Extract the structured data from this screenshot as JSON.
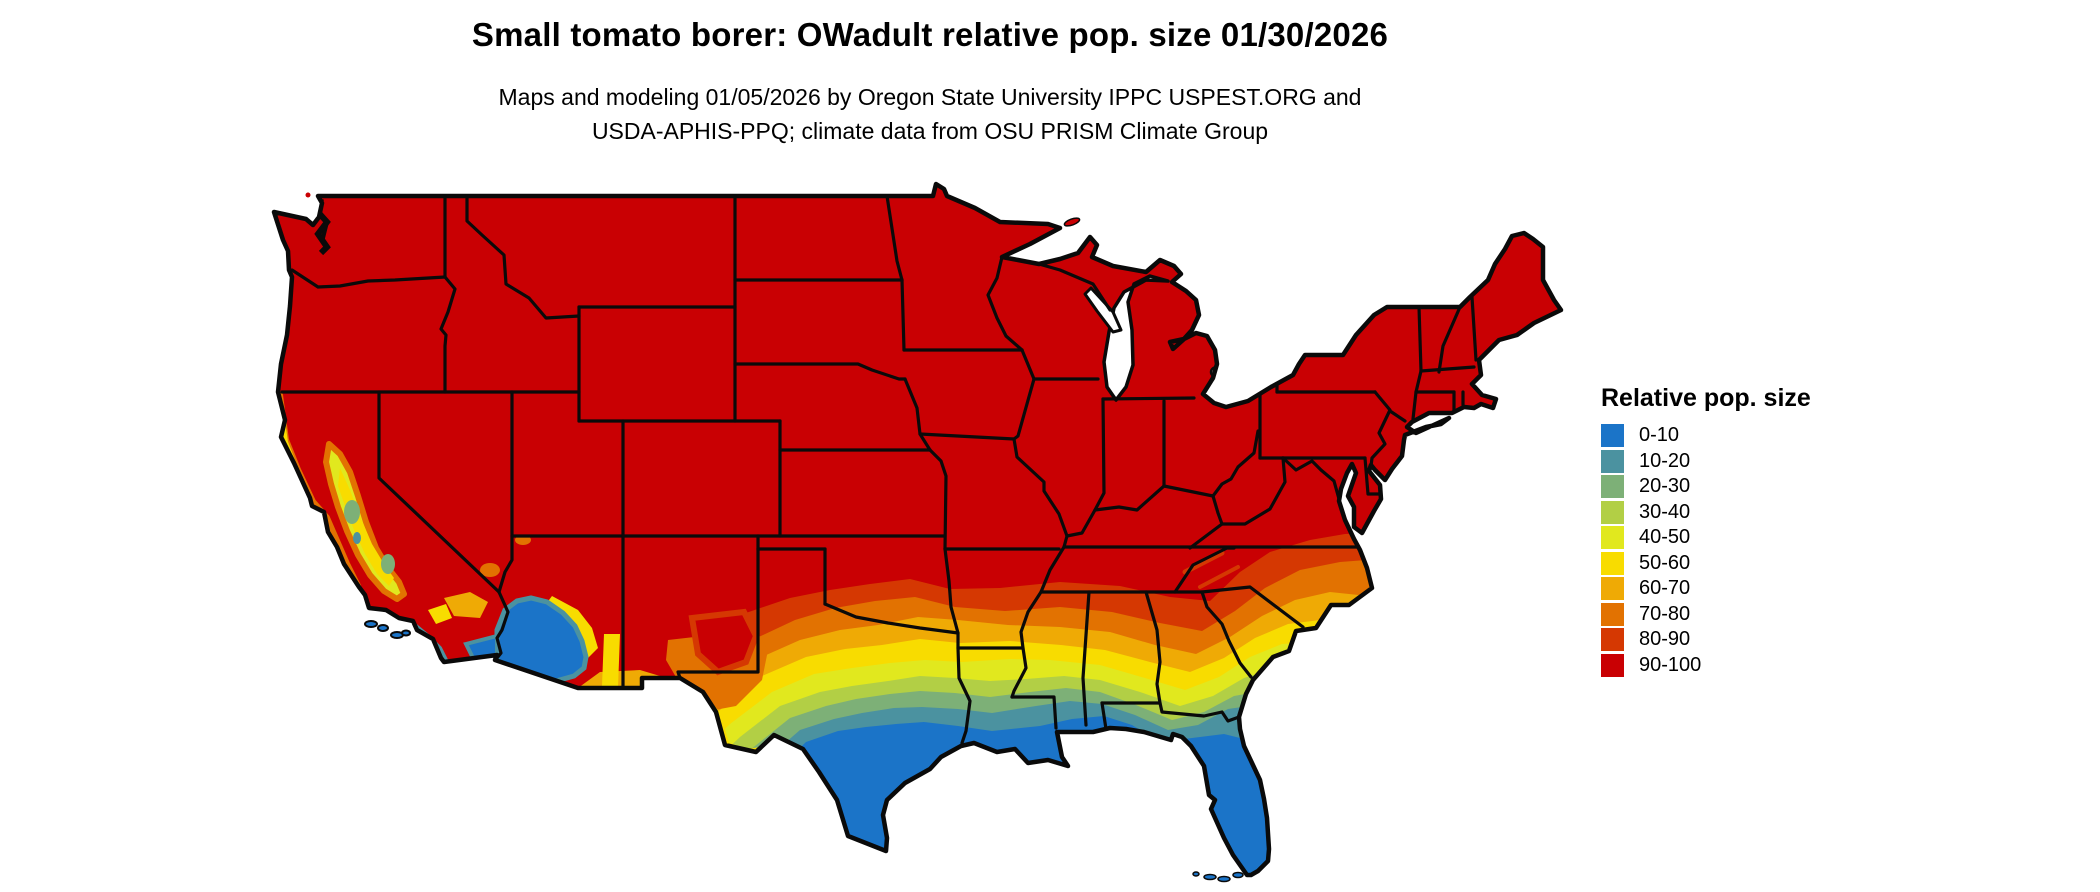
{
  "title": "Small tomato borer: OWadult relative pop. size 01/30/2026",
  "subtitle_line1": "Maps and modeling 01/05/2026 by Oregon State University IPPC USPEST.ORG and",
  "subtitle_line2": "USDA-APHIS-PPQ; climate data from OSU PRISM Climate Group",
  "legend": {
    "title": "Relative pop. size",
    "items": [
      {
        "label": "0-10",
        "color": "#1b74c8"
      },
      {
        "label": "10-20",
        "color": "#4b92a0"
      },
      {
        "label": "20-30",
        "color": "#7db077"
      },
      {
        "label": "30-40",
        "color": "#b2cf45"
      },
      {
        "label": "40-50",
        "color": "#e1e81e"
      },
      {
        "label": "50-60",
        "color": "#f8dc00"
      },
      {
        "label": "60-70",
        "color": "#efaa05"
      },
      {
        "label": "70-80",
        "color": "#e27201"
      },
      {
        "label": "80-90",
        "color": "#d53802"
      },
      {
        "label": "90-100",
        "color": "#c90003"
      }
    ]
  },
  "map": {
    "background_color": "#ffffff",
    "water_color": "#ffffff",
    "state_border_color": "#0a0a0a"
  }
}
